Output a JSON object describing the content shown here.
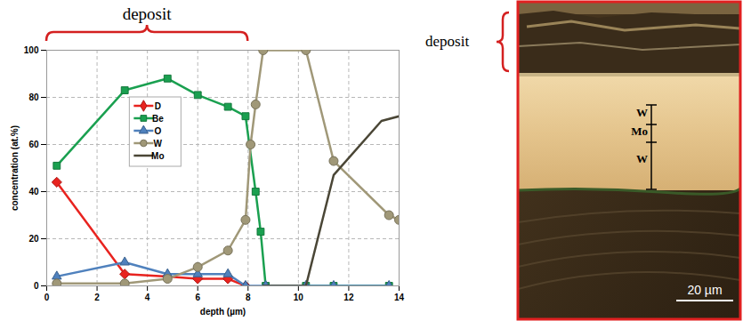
{
  "chart_data": {
    "type": "line",
    "title": "deposit",
    "x_label": "depth (µm)",
    "y_label": "concentration (at.%)",
    "xlim": [
      0,
      14
    ],
    "xticks": [
      0,
      2,
      4,
      6,
      8,
      10,
      12,
      14
    ],
    "ylim": [
      0,
      100
    ],
    "yticks": [
      0,
      20,
      40,
      60,
      80,
      100
    ],
    "grid": true,
    "legend": "inside",
    "annotations": [
      {
        "text": "deposit",
        "x_start": 0,
        "x_end": 8
      }
    ],
    "series": [
      {
        "name": "D",
        "color": "#e8231f",
        "marker": "diamond",
        "line_style": "solid",
        "x": [
          0.4,
          3.1,
          4.8,
          6.0,
          7.2,
          7.9
        ],
        "values": [
          44,
          5,
          4,
          3,
          3,
          0
        ]
      },
      {
        "name": "Be",
        "color": "#1aa050",
        "marker": "square",
        "line_style": "solid",
        "x": [
          0.4,
          3.1,
          4.8,
          6.0,
          7.2,
          7.9,
          8.3,
          8.5,
          8.7,
          10.3,
          11.4,
          13.6
        ],
        "values": [
          51,
          83,
          88,
          81,
          76,
          72,
          40,
          23,
          0,
          0,
          0,
          0
        ]
      },
      {
        "name": "O",
        "color": "#4f81bd",
        "marker": "triangle",
        "line_style": "solid",
        "x": [
          0.4,
          3.1,
          4.8,
          6.0,
          7.2,
          7.9,
          8.7,
          10.3,
          11.4,
          13.6
        ],
        "values": [
          4,
          10,
          5,
          5,
          5,
          0,
          0,
          0,
          0,
          0
        ]
      },
      {
        "name": "W",
        "color": "#a09878",
        "marker": "circle",
        "line_style": "solid",
        "x": [
          0.4,
          3.1,
          4.8,
          6.0,
          7.2,
          7.9,
          8.1,
          8.3,
          8.6,
          10.3,
          11.4,
          13.6,
          14.0
        ],
        "values": [
          1,
          1,
          3,
          8,
          15,
          28,
          60,
          77,
          100,
          100,
          53,
          30,
          28
        ]
      },
      {
        "name": "Mo",
        "color": "#4a4636",
        "marker": "none",
        "line_style": "solid",
        "x": [
          8.6,
          10.3,
          11.4,
          13.3,
          14.0
        ],
        "values": [
          0,
          0,
          47,
          70,
          72
        ]
      }
    ]
  },
  "image": {
    "deposit_label": "deposit",
    "layers": [
      "W",
      "Mo",
      "W"
    ],
    "scale_bar": "20 µm"
  }
}
